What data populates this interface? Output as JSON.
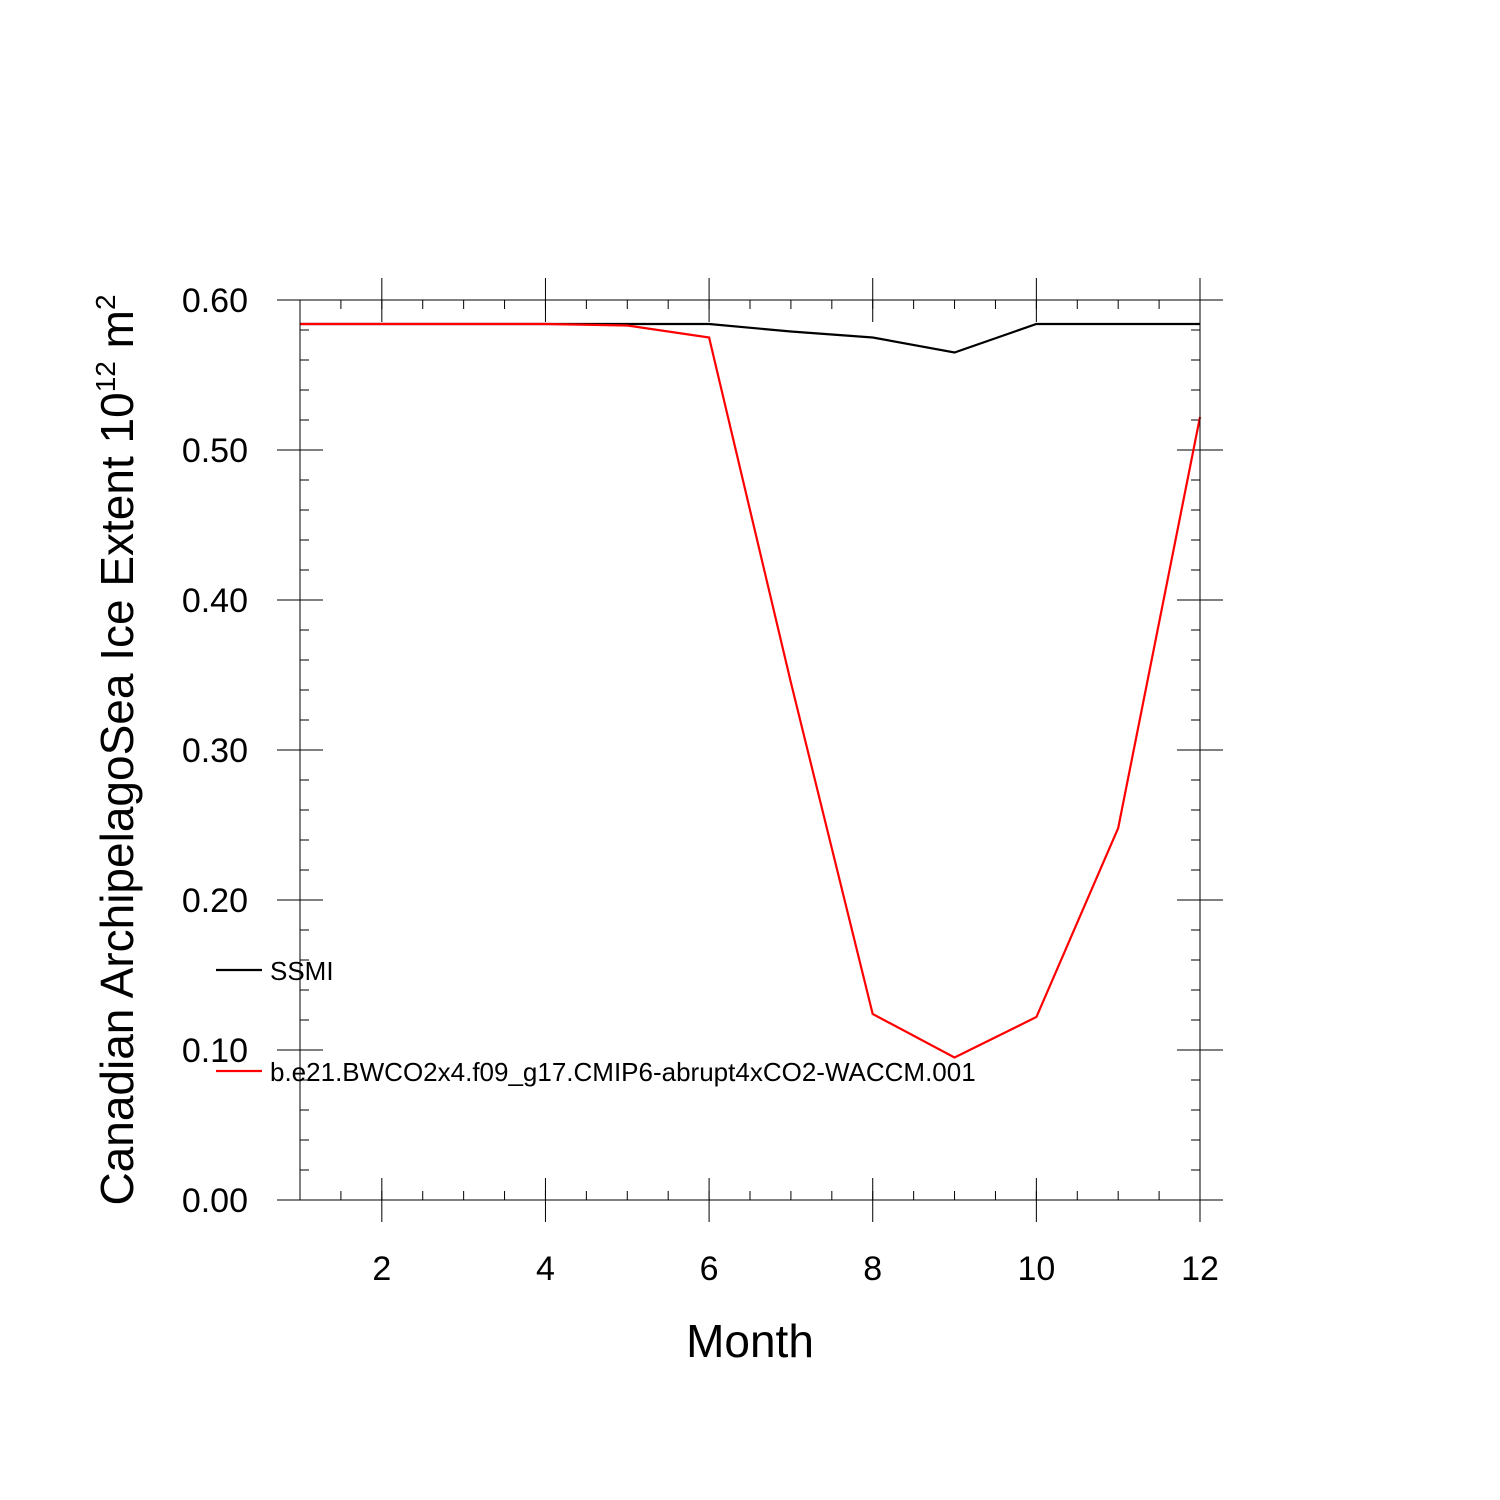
{
  "chart_data": {
    "type": "line",
    "title": "",
    "xlabel": "Month",
    "ylabel_main": "Canadian ArchipelagoSea Ice Extent 10",
    "ylabel_exponent": "12",
    "ylabel_unit": " m",
    "ylabel_unit_exponent": "2",
    "xlim": [
      1,
      12
    ],
    "ylim": [
      0,
      0.6
    ],
    "xticks": [
      2,
      4,
      6,
      8,
      10,
      12
    ],
    "xtick_labels": [
      "2",
      "4",
      "6",
      "8",
      "10",
      "12"
    ],
    "yticks": [
      0,
      0.1,
      0.2,
      0.3,
      0.4,
      0.5,
      0.6
    ],
    "ytick_labels": [
      "0.00",
      "0.10",
      "0.20",
      "0.30",
      "0.40",
      "0.50",
      "0.60"
    ],
    "grid": false,
    "legend_position": "left",
    "x": [
      1,
      2,
      3,
      4,
      5,
      6,
      7,
      8,
      9,
      10,
      11,
      12
    ],
    "series": [
      {
        "name": "SSMI",
        "color": "#000000",
        "values": [
          0.584,
          0.584,
          0.584,
          0.584,
          0.584,
          0.584,
          0.579,
          0.575,
          0.565,
          0.584,
          0.584,
          0.584
        ]
      },
      {
        "name": "b.e21.BWCO2x4.f09_g17.CMIP6-abrupt4xCO2-WACCM.001",
        "color": "#ff0000",
        "values": [
          0.584,
          0.584,
          0.584,
          0.584,
          0.583,
          0.575,
          0.345,
          0.124,
          0.095,
          0.122,
          0.248,
          0.522
        ]
      }
    ]
  }
}
